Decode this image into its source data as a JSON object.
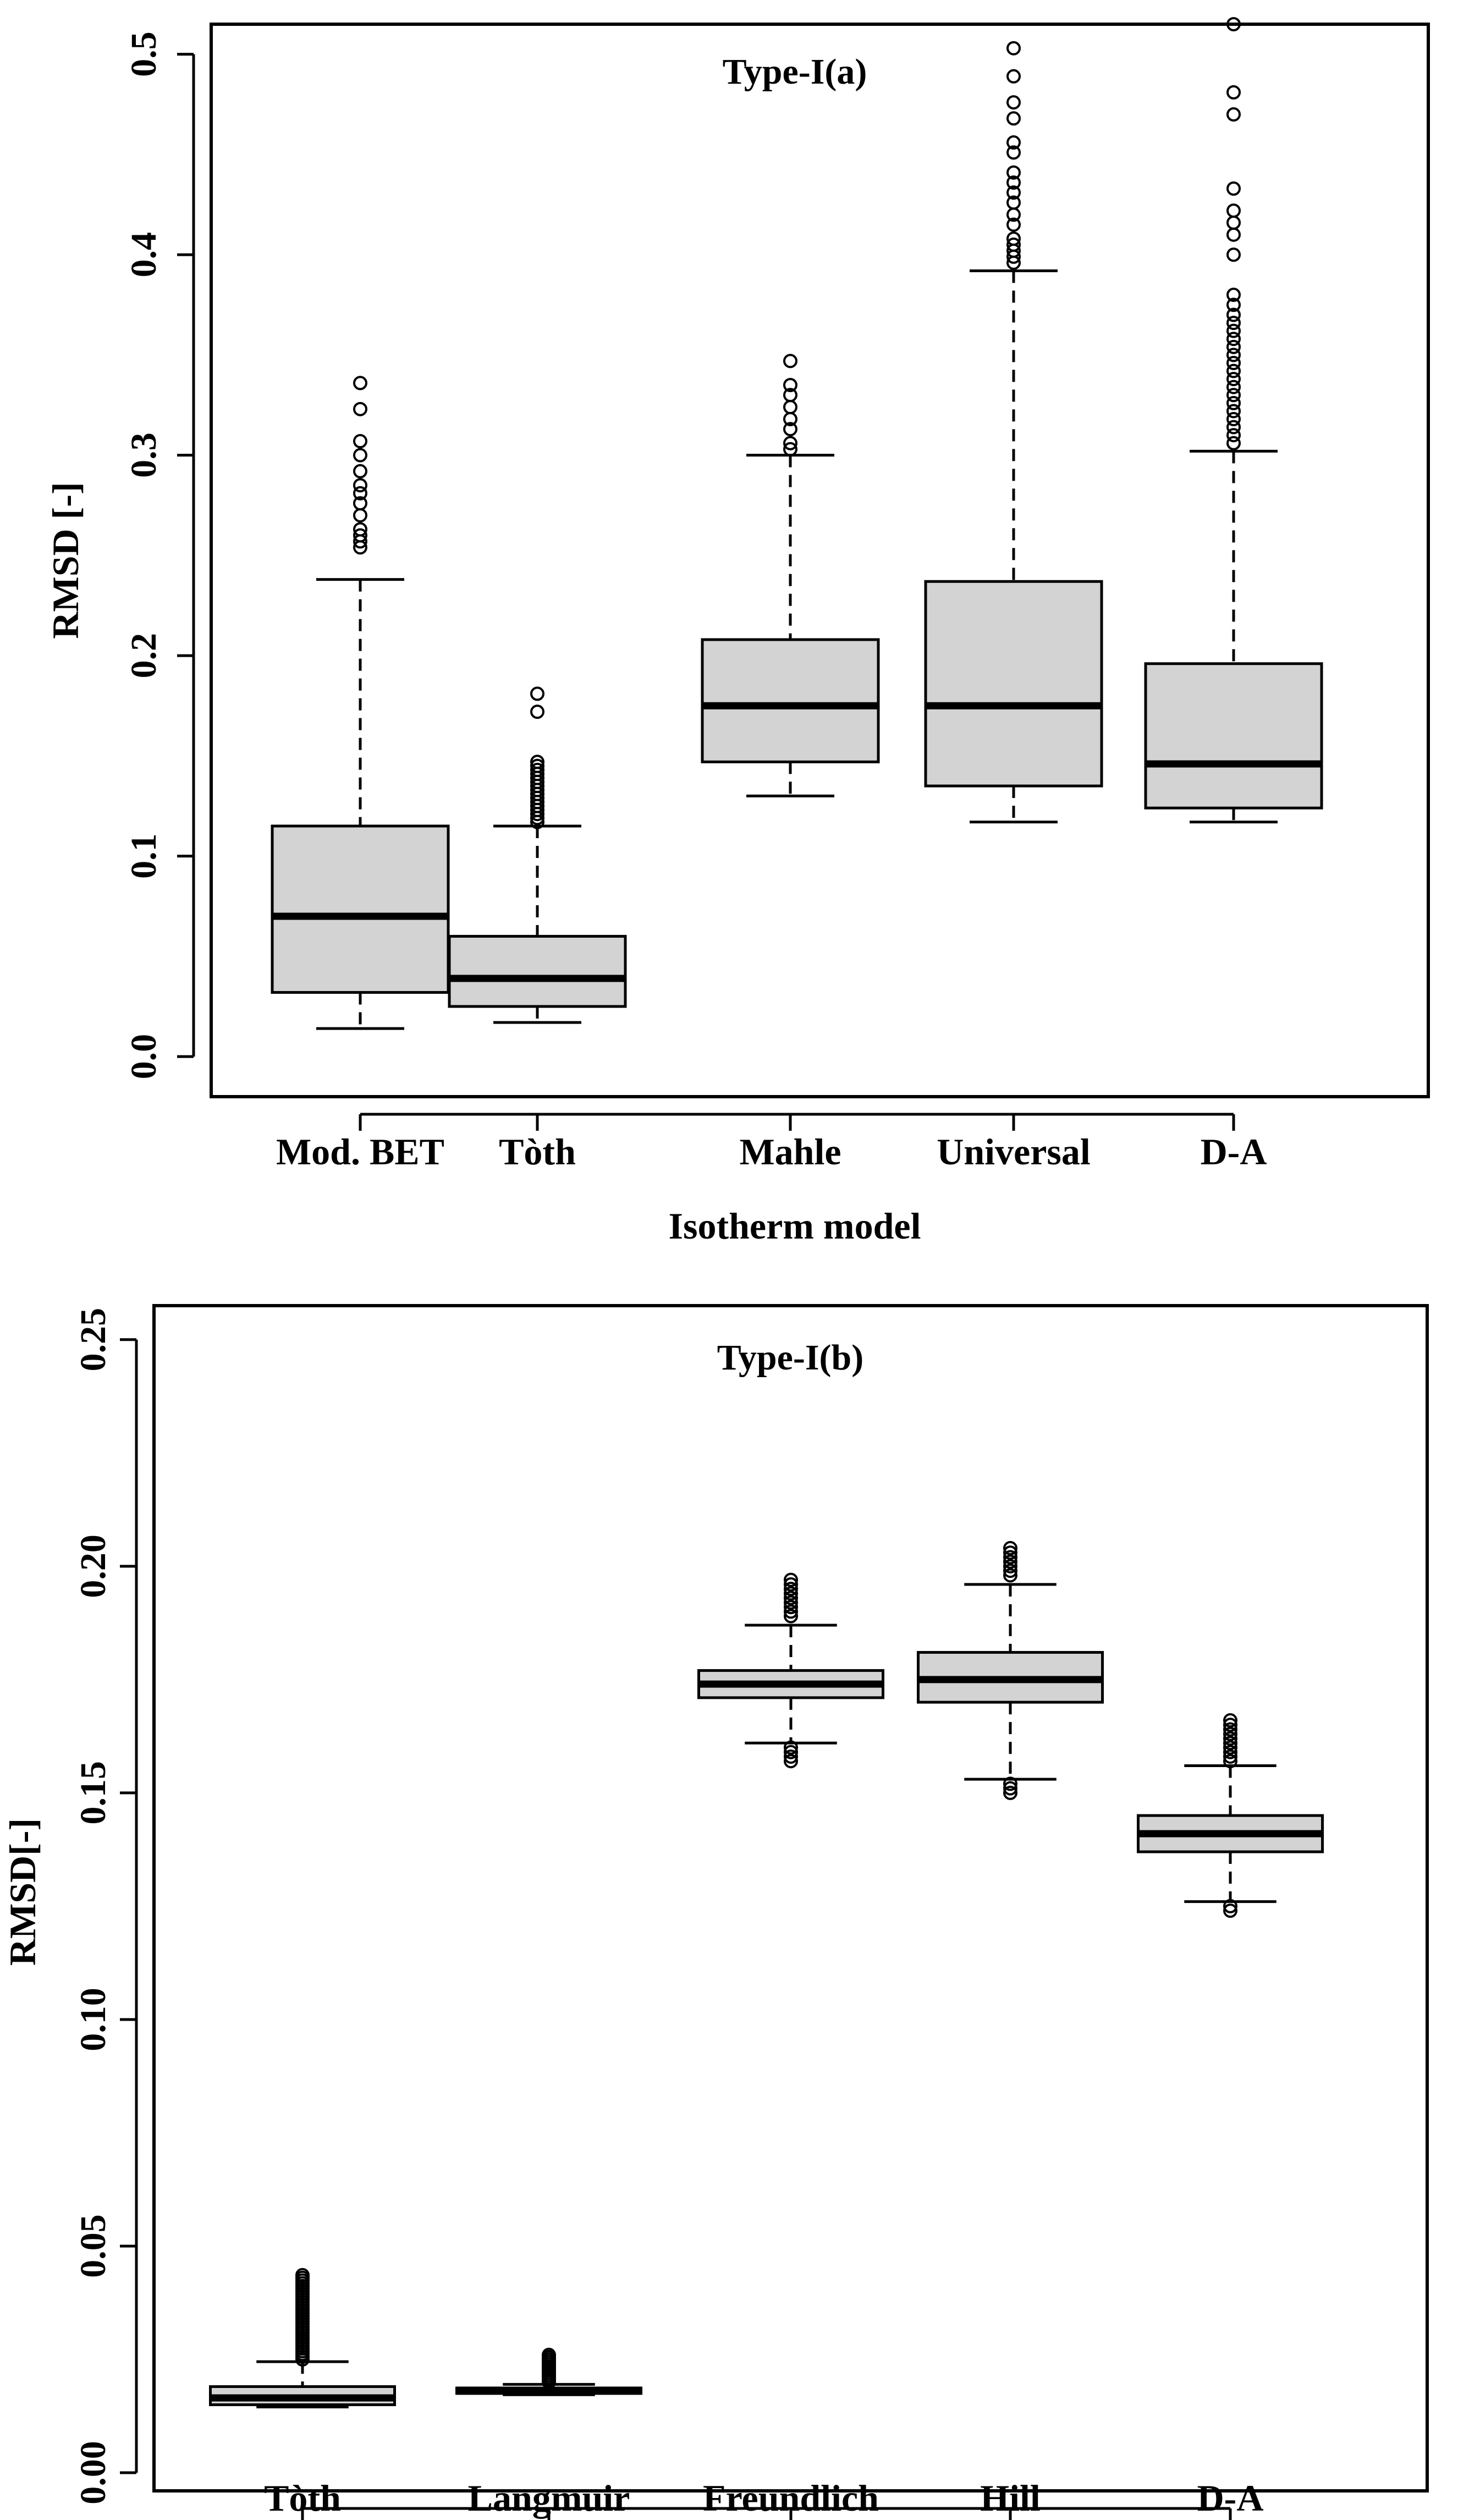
{
  "chart_data": [
    {
      "type": "boxplot",
      "title": "Type-I(a)",
      "xlabel": "Isotherm model",
      "ylabel": "RMSD [-]",
      "ylim": [
        -0.02,
        0.515
      ],
      "yticks": [
        0.0,
        0.1,
        0.2,
        0.3,
        0.4,
        0.5
      ],
      "ytick_labels": [
        "0.0",
        "0.1",
        "0.2",
        "0.3",
        "0.4",
        "0.5"
      ],
      "categories": [
        "Mod. BET",
        "Tòth",
        "Mahle",
        "Universal",
        "D-A"
      ],
      "boxes": [
        {
          "name": "Mod. BET",
          "whisker_low": 0.014,
          "q1": 0.032,
          "median": 0.07,
          "q3": 0.115,
          "whisker_high": 0.238,
          "outliers": [
            0.254,
            0.257,
            0.26,
            0.263,
            0.27,
            0.276,
            0.281,
            0.285,
            0.292,
            0.3,
            0.307,
            0.323,
            0.336
          ]
        },
        {
          "name": "Tòth",
          "whisker_low": 0.017,
          "q1": 0.025,
          "median": 0.039,
          "q3": 0.06,
          "whisker_high": 0.115,
          "outliers": [
            0.117,
            0.119,
            0.121,
            0.123,
            0.125,
            0.127,
            0.129,
            0.131,
            0.133,
            0.135,
            0.137,
            0.139,
            0.141,
            0.143,
            0.145,
            0.147,
            0.172,
            0.181
          ]
        },
        {
          "name": "Mahle",
          "whisker_low": 0.13,
          "q1": 0.147,
          "median": 0.175,
          "q3": 0.208,
          "whisker_high": 0.3,
          "outliers": [
            0.303,
            0.306,
            0.313,
            0.318,
            0.324,
            0.33,
            0.335,
            0.347
          ]
        },
        {
          "name": "Universal",
          "whisker_low": 0.117,
          "q1": 0.135,
          "median": 0.175,
          "q3": 0.237,
          "whisker_high": 0.392,
          "outliers": [
            0.396,
            0.399,
            0.402,
            0.405,
            0.408,
            0.415,
            0.42,
            0.426,
            0.431,
            0.436,
            0.441,
            0.451,
            0.456,
            0.468,
            0.476,
            0.489,
            0.503
          ]
        },
        {
          "name": "D-A",
          "whisker_low": 0.117,
          "q1": 0.124,
          "median": 0.146,
          "q3": 0.196,
          "whisker_high": 0.302,
          "outliers": [
            0.306,
            0.31,
            0.314,
            0.318,
            0.322,
            0.326,
            0.33,
            0.334,
            0.338,
            0.342,
            0.346,
            0.35,
            0.354,
            0.358,
            0.362,
            0.366,
            0.37,
            0.375,
            0.38,
            0.4,
            0.41,
            0.416,
            0.422,
            0.433,
            0.47,
            0.481,
            0.515
          ]
        }
      ]
    },
    {
      "type": "boxplot",
      "title": "Type-I(b)",
      "xlabel": "",
      "ylabel": "RMSD[-]",
      "ylim": [
        -0.004,
        0.2575
      ],
      "yticks": [
        0.0,
        0.05,
        0.1,
        0.15,
        0.2,
        0.25
      ],
      "ytick_labels": [
        "0.00",
        "0.05",
        "0.10",
        "0.15",
        "0.20",
        "0.25"
      ],
      "categories": [
        "Tòth",
        "Langmuir",
        "Freundlich",
        "Hill",
        "D-A"
      ],
      "boxes": [
        {
          "name": "Tòth",
          "whisker_low": 0.0145,
          "q1": 0.015,
          "median": 0.0165,
          "q3": 0.019,
          "whisker_high": 0.0245,
          "outliers": [
            0.025,
            0.0256,
            0.0262,
            0.0268,
            0.0274,
            0.028,
            0.0286,
            0.0292,
            0.0298,
            0.0304,
            0.031,
            0.0316,
            0.0322,
            0.0328,
            0.0334,
            0.034,
            0.0346,
            0.0352,
            0.0358,
            0.0364,
            0.037,
            0.0376,
            0.0382,
            0.0388,
            0.0394,
            0.04,
            0.0406,
            0.0412,
            0.0418,
            0.0424,
            0.043,
            0.0436
          ]
        },
        {
          "name": "Langmuir",
          "whisker_low": 0.0172,
          "q1": 0.0175,
          "median": 0.018,
          "q3": 0.0187,
          "whisker_high": 0.0195,
          "outliers": [
            0.02,
            0.0205,
            0.021,
            0.0215,
            0.022,
            0.0225,
            0.023,
            0.0235,
            0.024,
            0.0245,
            0.025,
            0.0255,
            0.026
          ]
        },
        {
          "name": "Freundlich",
          "whisker_low": 0.161,
          "q1": 0.171,
          "median": 0.174,
          "q3": 0.177,
          "whisker_high": 0.187,
          "outliers": [
            0.157,
            0.158,
            0.159,
            0.16,
            0.189,
            0.19,
            0.191,
            0.192,
            0.193,
            0.194,
            0.195,
            0.196,
            0.197
          ]
        },
        {
          "name": "Hill",
          "whisker_low": 0.153,
          "q1": 0.17,
          "median": 0.175,
          "q3": 0.181,
          "whisker_high": 0.196,
          "outliers": [
            0.15,
            0.151,
            0.152,
            0.198,
            0.199,
            0.2,
            0.201,
            0.202,
            0.203,
            0.204
          ]
        },
        {
          "name": "D-A",
          "whisker_low": 0.126,
          "q1": 0.137,
          "median": 0.141,
          "q3": 0.145,
          "whisker_high": 0.156,
          "outliers": [
            0.124,
            0.125,
            0.157,
            0.158,
            0.159,
            0.16,
            0.161,
            0.162,
            0.163,
            0.164,
            0.165,
            0.166
          ]
        }
      ]
    }
  ]
}
